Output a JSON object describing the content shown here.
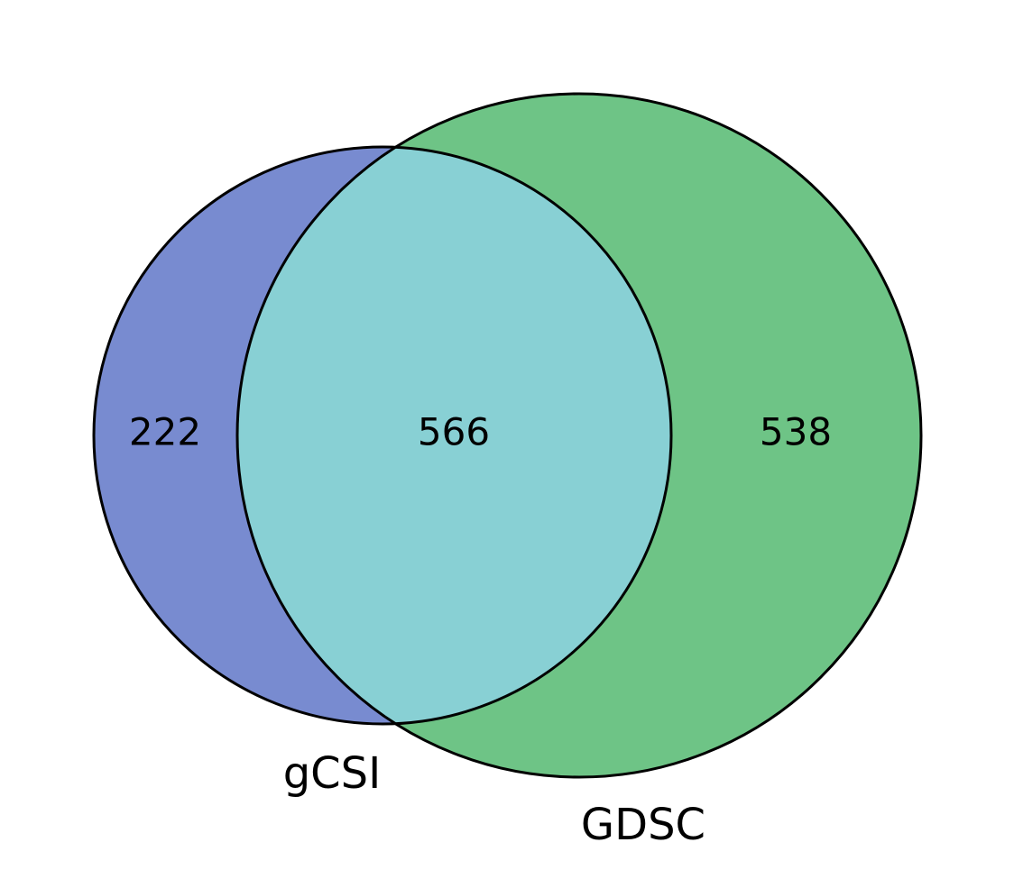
{
  "diagram": {
    "type": "venn",
    "sets": [
      {
        "id": "gcsi",
        "label": "gCSI",
        "color": "#788bd0"
      },
      {
        "id": "gdsc",
        "label": "GDSC",
        "color": "#6ec486"
      }
    ],
    "regions": {
      "gcsi_only": {
        "value": "222"
      },
      "both": {
        "value": "566",
        "color": "#88d0d4"
      },
      "gdsc_only": {
        "value": "538"
      }
    },
    "outline_color": "#000000"
  }
}
